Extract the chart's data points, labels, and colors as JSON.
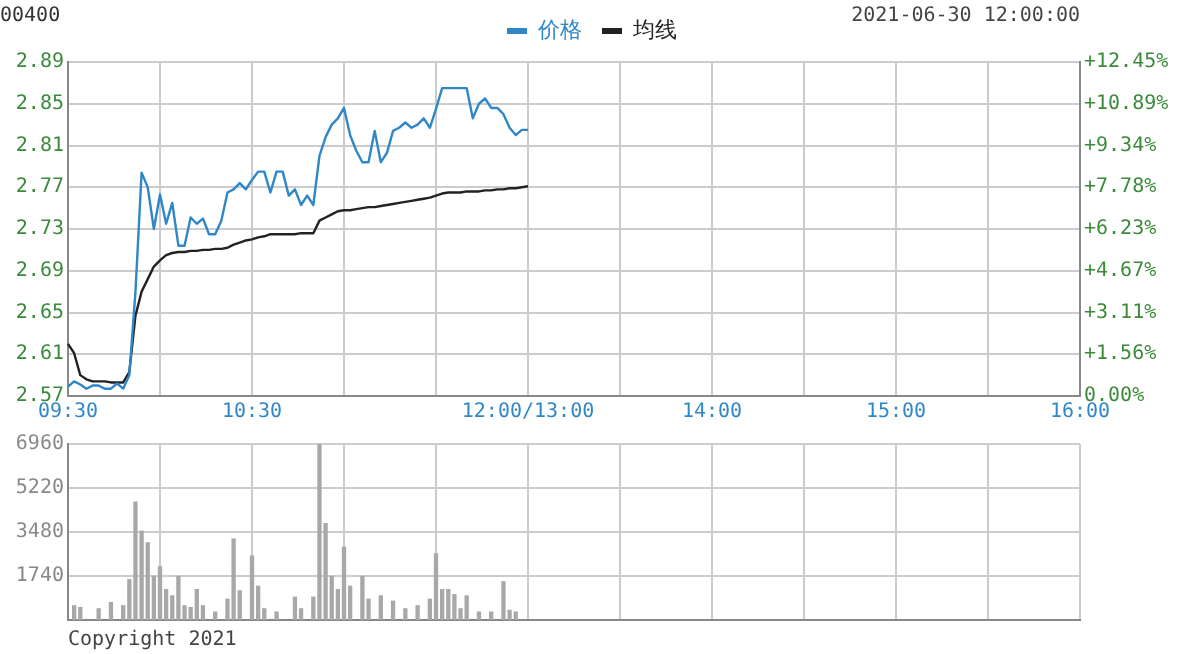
{
  "chart_data": [
    {
      "type": "line",
      "title": "00400",
      "annotations": [
        "2021-06-30 12:00:00"
      ],
      "legend": "top",
      "grid": true,
      "categories": [
        "09:30",
        null,
        null,
        null,
        null,
        null,
        null,
        null,
        null,
        null,
        null,
        null,
        null,
        null,
        null,
        null,
        null,
        null,
        null,
        null,
        null,
        null,
        null,
        null,
        null,
        null,
        null,
        null,
        null,
        null,
        "10:30",
        null,
        null,
        null,
        null,
        null,
        null,
        null,
        null,
        null,
        null,
        null,
        null,
        null,
        null,
        null,
        null,
        null,
        null,
        null,
        null,
        null,
        null,
        null,
        null,
        null,
        null,
        null,
        null,
        null,
        null,
        null,
        null,
        null,
        null,
        null,
        null,
        null,
        null,
        null,
        null,
        null,
        null,
        null,
        null,
        "12:00/13:00",
        null,
        null,
        null,
        null,
        null,
        null,
        null,
        null,
        null,
        null,
        null,
        null,
        null,
        null,
        null,
        null,
        null,
        null,
        null,
        null,
        null,
        null,
        null,
        null,
        null,
        null,
        null,
        null,
        null,
        "14:00",
        null,
        null,
        null,
        null,
        null,
        null,
        null,
        null,
        null,
        null,
        null,
        null,
        null,
        null,
        null,
        null,
        null,
        null,
        null,
        null,
        null,
        null,
        null,
        null,
        null,
        null,
        null,
        null,
        null,
        "15:00",
        null,
        null,
        null,
        null,
        null,
        null,
        null,
        null,
        null,
        null,
        null,
        null,
        null,
        null,
        null,
        null,
        null,
        null,
        null,
        null,
        null,
        null,
        null,
        null,
        null,
        null,
        null,
        null,
        null,
        "16:00"
      ],
      "ylim": [
        2.57,
        2.89
      ],
      "yticks": [
        2.57,
        2.61,
        2.65,
        2.69,
        2.73,
        2.77,
        2.81,
        2.85,
        2.89
      ],
      "y2lim": [
        0,
        12.45
      ],
      "y2ticks": [
        {
          "value": 0,
          "label": "0.00%"
        },
        {
          "value": 1.56,
          "label": "+1.56%"
        },
        {
          "value": 3.11,
          "label": "+3.11%"
        },
        {
          "value": 4.67,
          "label": "+4.67%"
        },
        {
          "value": 6.23,
          "label": "+6.23%"
        },
        {
          "value": 7.78,
          "label": "+7.78%"
        },
        {
          "value": 9.34,
          "label": "+9.34%"
        },
        {
          "value": 10.89,
          "label": "+10.89%"
        },
        {
          "value": 12.45,
          "label": "+12.45%"
        }
      ],
      "series": [
        {
          "name": "价格",
          "color": "#2f87c8",
          "values": [
            2.579,
            2.584,
            2.581,
            2.577,
            2.58,
            2.58,
            2.577,
            2.577,
            2.582,
            2.577,
            2.59,
            2.67,
            2.784,
            2.77,
            2.73,
            2.763,
            2.735,
            2.755,
            2.714,
            2.714,
            2.741,
            2.735,
            2.74,
            2.725,
            2.725,
            2.738,
            2.765,
            2.768,
            2.774,
            2.768,
            2.777,
            2.785,
            2.785,
            2.765,
            2.785,
            2.785,
            2.762,
            2.768,
            2.753,
            2.762,
            2.753,
            2.8,
            2.818,
            2.83,
            2.836,
            2.846,
            2.82,
            2.805,
            2.794,
            2.794,
            2.824,
            2.794,
            2.803,
            2.824,
            2.827,
            2.832,
            2.827,
            2.83,
            2.836,
            2.827,
            2.845,
            2.865,
            2.865,
            2.865,
            2.865,
            2.865,
            2.836,
            2.85,
            2.855,
            2.846,
            2.846,
            2.84,
            2.827,
            2.82,
            2.825,
            2.825,
            null,
            null,
            null,
            null,
            null,
            null,
            null,
            null,
            null,
            null,
            null,
            null,
            null,
            null,
            null,
            null,
            null,
            null,
            null,
            null,
            null,
            null,
            null,
            null,
            null,
            null,
            null,
            null,
            null,
            null,
            null,
            null,
            null,
            null,
            null,
            null,
            null,
            null,
            null,
            null,
            null,
            null,
            null,
            null,
            null,
            null,
            null,
            null,
            null,
            null,
            null,
            null,
            null,
            null,
            null,
            null,
            null,
            null,
            null,
            null,
            null,
            null,
            null,
            null,
            null,
            null,
            null,
            null,
            null,
            null,
            null,
            null,
            null,
            null,
            null,
            null,
            null,
            null,
            null,
            null,
            null,
            null,
            null,
            null,
            null,
            null,
            null,
            null,
            null,
            null
          ]
        },
        {
          "name": "均线",
          "color": "#222222",
          "values": [
            2.62,
            2.611,
            2.59,
            2.586,
            2.584,
            2.584,
            2.584,
            2.583,
            2.583,
            2.583,
            2.593,
            2.647,
            2.67,
            2.682,
            2.694,
            2.7,
            2.705,
            2.707,
            2.708,
            2.708,
            2.709,
            2.709,
            2.71,
            2.71,
            2.711,
            2.711,
            2.712,
            2.715,
            2.717,
            2.719,
            2.72,
            2.722,
            2.723,
            2.725,
            2.725,
            2.725,
            2.725,
            2.725,
            2.726,
            2.726,
            2.726,
            2.738,
            2.741,
            2.744,
            2.747,
            2.748,
            2.748,
            2.749,
            2.75,
            2.751,
            2.751,
            2.752,
            2.753,
            2.754,
            2.755,
            2.756,
            2.757,
            2.758,
            2.759,
            2.76,
            2.762,
            2.764,
            2.765,
            2.765,
            2.765,
            2.766,
            2.766,
            2.766,
            2.767,
            2.767,
            2.768,
            2.768,
            2.769,
            2.769,
            2.77,
            2.771,
            null,
            null,
            null,
            null,
            null,
            null,
            null,
            null,
            null,
            null,
            null,
            null,
            null,
            null,
            null,
            null,
            null,
            null,
            null,
            null,
            null,
            null,
            null,
            null,
            null,
            null,
            null,
            null,
            null,
            null,
            null,
            null,
            null,
            null,
            null,
            null,
            null,
            null,
            null,
            null,
            null,
            null,
            null,
            null,
            null,
            null,
            null,
            null,
            null,
            null,
            null,
            null,
            null,
            null,
            null,
            null,
            null,
            null,
            null,
            null,
            null,
            null,
            null,
            null,
            null,
            null,
            null,
            null,
            null,
            null,
            null,
            null,
            null,
            null,
            null,
            null,
            null,
            null,
            null,
            null,
            null,
            null,
            null,
            null,
            null,
            null,
            null,
            null,
            null,
            null
          ]
        }
      ]
    },
    {
      "type": "bar",
      "annotations": [
        "Copyright 2021"
      ],
      "grid": true,
      "tick_labels": "y",
      "color": "#a8a8a8",
      "categories": [
        null,
        null,
        null,
        null,
        null,
        null,
        null,
        null,
        null,
        null,
        null,
        null,
        null,
        null,
        null,
        null,
        null,
        null,
        null,
        null,
        null,
        null,
        null,
        null,
        null,
        null,
        null,
        null,
        null,
        null,
        null,
        null,
        null,
        null,
        null,
        null,
        null,
        null,
        null,
        null,
        null,
        null,
        null,
        null,
        null,
        null,
        null,
        null,
        null,
        null,
        null,
        null,
        null,
        null,
        null,
        null,
        null,
        null,
        null,
        null,
        null,
        null,
        null,
        null,
        null,
        null,
        null,
        null,
        null,
        null,
        null,
        null,
        null,
        null,
        null,
        null,
        null,
        null,
        null,
        null,
        null,
        null,
        null,
        null,
        null,
        null,
        null,
        null,
        null,
        null,
        null,
        null,
        null,
        null,
        null,
        null,
        null,
        null,
        null,
        null,
        null,
        null,
        null,
        null,
        null,
        null,
        null,
        null,
        null,
        null,
        null,
        null,
        null,
        null,
        null,
        null,
        null,
        null,
        null,
        null,
        null,
        null,
        null,
        null,
        null,
        null,
        null,
        null,
        null,
        null,
        null,
        null,
        null,
        null,
        null,
        null,
        null,
        null,
        null,
        null,
        null,
        null,
        null,
        null,
        null,
        null,
        null,
        null,
        null,
        null,
        null,
        null,
        null,
        null,
        null,
        null,
        null,
        null,
        null,
        null,
        null,
        null,
        null,
        null,
        null,
        null
      ],
      "ylim": [
        0,
        6960
      ],
      "yticks": [
        1740,
        3480,
        5220,
        6960
      ],
      "values": [
        null,
        560,
        490,
        null,
        null,
        440,
        null,
        690,
        null,
        560,
        1590,
        4660,
        3510,
        3050,
        1720,
        2100,
        1200,
        950,
        1720,
        560,
        490,
        1200,
        560,
        null,
        310,
        null,
        820,
        3200,
        1150,
        null,
        2530,
        1330,
        440,
        null,
        310,
        null,
        null,
        900,
        440,
        null,
        900,
        6960,
        3810,
        1720,
        1200,
        2870,
        1330,
        null,
        1720,
        820,
        null,
        950,
        null,
        740,
        null,
        440,
        null,
        560,
        null,
        820,
        2610,
        1200,
        1200,
        1000,
        440,
        950,
        null,
        310,
        null,
        310,
        null,
        1510,
        380,
        310,
        null,
        null,
        null,
        null,
        null,
        null,
        null,
        null,
        null,
        null,
        null,
        null,
        null,
        null,
        null,
        null,
        null,
        null,
        null,
        null,
        null,
        null,
        null,
        null,
        null,
        null,
        null,
        null,
        null,
        null,
        null,
        null,
        null,
        null,
        null,
        null,
        null,
        null,
        null,
        null,
        null,
        null,
        null,
        null,
        null,
        null,
        null,
        null,
        null,
        null,
        null,
        null,
        null,
        null,
        null,
        null,
        null,
        null,
        null,
        null,
        null,
        null,
        null,
        null,
        null,
        null,
        null,
        null,
        null,
        null,
        null,
        null,
        null,
        null,
        null,
        null,
        null,
        null,
        null,
        null,
        null,
        null,
        null,
        null,
        null,
        null,
        null,
        null,
        null,
        null,
        null,
        null
      ]
    }
  ]
}
